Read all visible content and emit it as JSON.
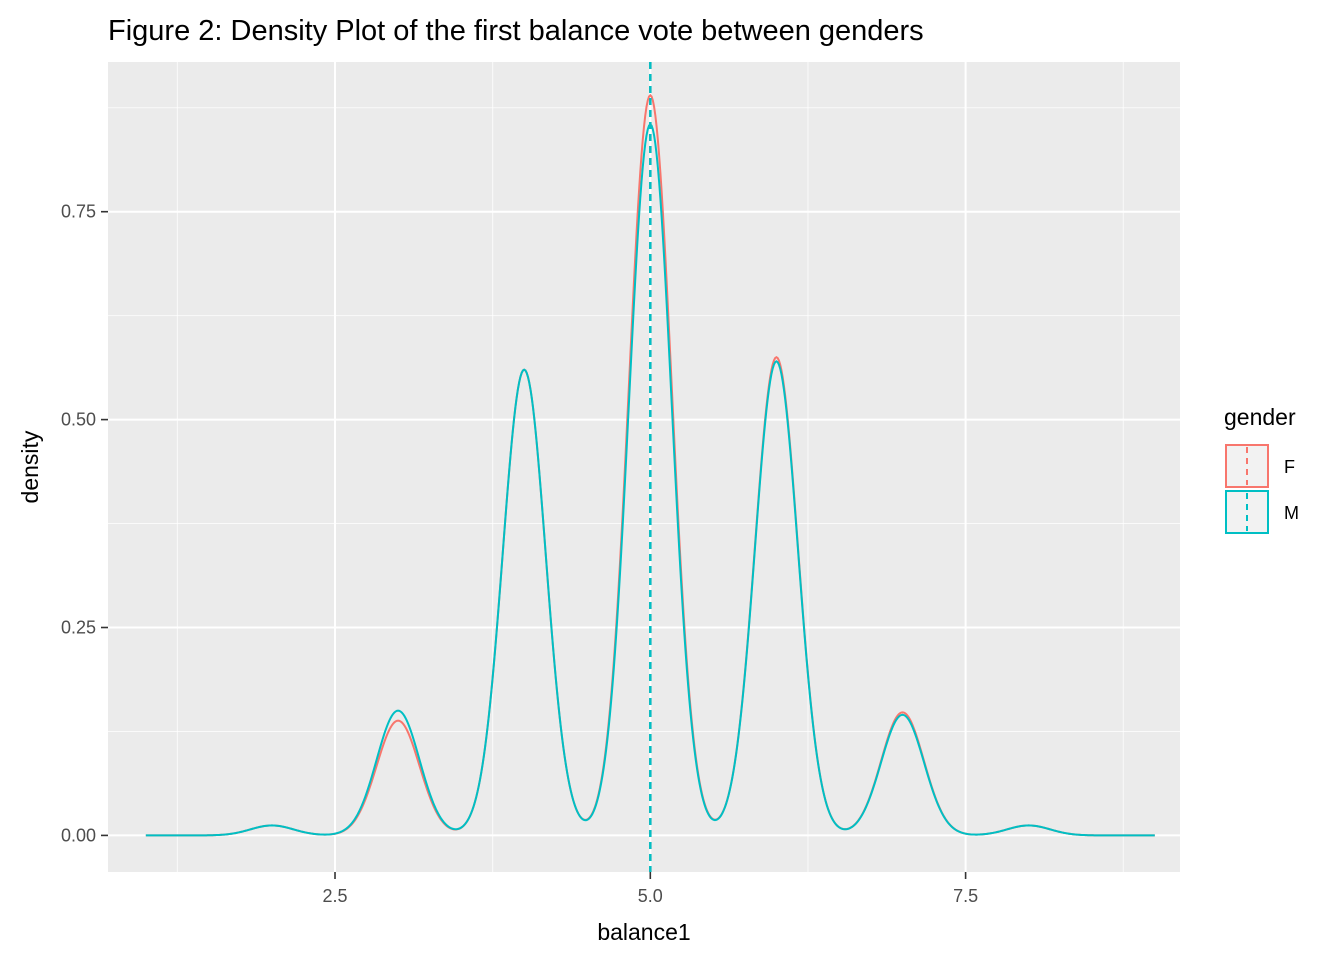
{
  "chart_data": {
    "type": "line",
    "title": "Figure 2: Density Plot of the first balance vote between genders",
    "xlabel": "balance1",
    "ylabel": "density",
    "xlim": [
      0.7,
      9.2
    ],
    "ylim": [
      -0.044,
      0.93
    ],
    "x_ticks": [
      2.5,
      5.0,
      7.5
    ],
    "x_tick_labels": [
      "2.5",
      "5.0",
      "7.5"
    ],
    "y_ticks": [
      0,
      0.25,
      0.5,
      0.75
    ],
    "y_tick_labels": [
      "0.00",
      "0.25",
      "0.50",
      "0.75"
    ],
    "grid": true,
    "legend": {
      "title": "gender",
      "position": "right"
    },
    "vlines": [
      {
        "series": "F",
        "x": 5.0,
        "linetype": "dashed"
      },
      {
        "series": "M",
        "x": 5.0,
        "linetype": "dashed"
      }
    ],
    "series": [
      {
        "name": "F",
        "color": "#F8766D",
        "peaks": [
          {
            "x": 2.0,
            "density": 0.012
          },
          {
            "x": 3.0,
            "density": 0.138
          },
          {
            "x": 4.0,
            "density": 0.56
          },
          {
            "x": 5.0,
            "density": 0.89
          },
          {
            "x": 6.0,
            "density": 0.575
          },
          {
            "x": 7.0,
            "density": 0.148
          },
          {
            "x": 8.0,
            "density": 0.012
          }
        ],
        "x_range": [
          1.0,
          9.0
        ]
      },
      {
        "name": "M",
        "color": "#00BFC4",
        "peaks": [
          {
            "x": 2.0,
            "density": 0.012
          },
          {
            "x": 3.0,
            "density": 0.15
          },
          {
            "x": 4.0,
            "density": 0.56
          },
          {
            "x": 5.0,
            "density": 0.855
          },
          {
            "x": 6.0,
            "density": 0.57
          },
          {
            "x": 7.0,
            "density": 0.145
          },
          {
            "x": 8.0,
            "density": 0.012
          }
        ],
        "x_range": [
          1.0,
          9.0
        ]
      }
    ]
  }
}
